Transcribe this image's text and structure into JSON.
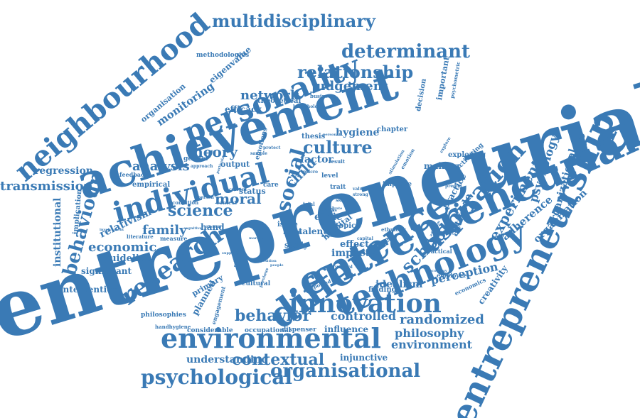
{
  "cloud": {
    "color": "#3a7ab5",
    "background": "#ffffff",
    "words": [
      "entrepreneurial",
      "entrepreneurship",
      "achievement",
      "entrepreneurial",
      "difference",
      "technology",
      "aspiration",
      "individual",
      "personality",
      "neighbourhood",
      "innovation",
      "environmental",
      "research",
      "behaviour",
      "multidisciplinary",
      "determinant",
      "relationship",
      "judgement",
      "network",
      "culture",
      "social",
      "school",
      "experiment",
      "psychology",
      "organizational",
      "organization",
      "adherence",
      "psychological",
      "organisational",
      "contextual",
      "behavior",
      "controlled",
      "randomized",
      "philosophy",
      "environment",
      "economic",
      "family",
      "science",
      "moral",
      "theory",
      "analysis",
      "regression",
      "transmission",
      "institutional",
      "relativism",
      "significant",
      "intervention",
      "guideline",
      "perception",
      "idealism",
      "finding",
      "creativity",
      "attitude",
      "practice",
      "making",
      "exploring",
      "chapter",
      "hygiene",
      "factor",
      "thesis",
      "monitoring",
      "eigenvalue",
      "methodologies",
      "organisation",
      "efficacy",
      "theoretical",
      "business",
      "decision",
      "important",
      "psychometric",
      "understanding",
      "injunctive",
      "influence",
      "dispenser",
      "occupational",
      "considerable",
      "philosophies",
      "handhygiene",
      "engagement",
      "planned",
      "primary",
      "cultural",
      "reported",
      "worker",
      "impact",
      "effect",
      "hospital",
      "ethic",
      "talent",
      "study",
      "norm",
      "issue",
      "hand",
      "child",
      "trait",
      "field",
      "topic",
      "employee",
      "economics",
      "empirical",
      "feedback",
      "gender",
      "output",
      "approach",
      "status",
      "emotions",
      "implication",
      "practical",
      "literature",
      "measure",
      "current",
      "person",
      "condition",
      "context",
      "improve",
      "activating",
      "care",
      "level",
      "result",
      "ethnicity",
      "stimulation",
      "emotion",
      "predict",
      "value",
      "strong",
      "health",
      "capital",
      "trial",
      "macro",
      "cross",
      "skill",
      "rate",
      "sample",
      "protect",
      "household",
      "personal",
      "explore",
      "previous",
      "relation",
      "support",
      "position",
      "market",
      "identify",
      "cognitive",
      "involvement",
      "particular",
      "economy",
      "structural",
      "people",
      "goal",
      "adoption"
    ]
  }
}
